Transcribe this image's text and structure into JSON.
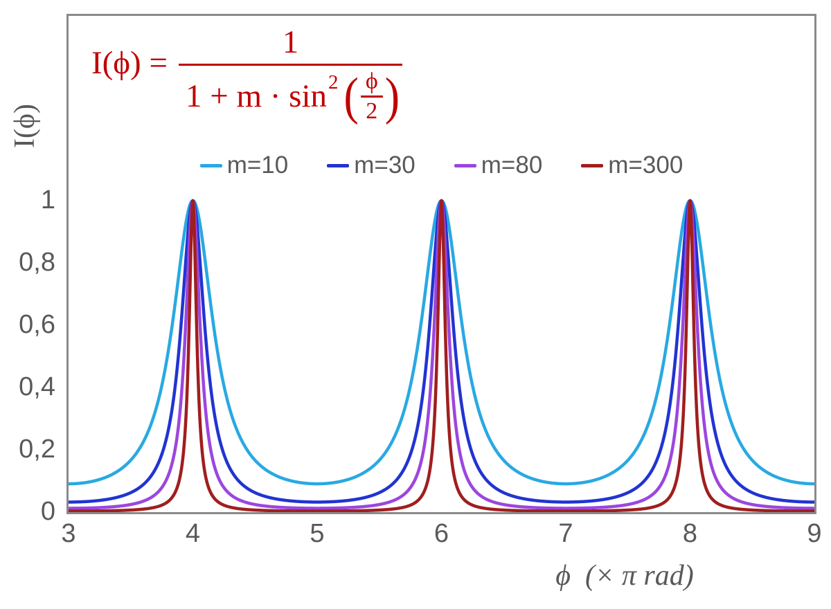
{
  "chart_data": {
    "type": "line",
    "title": "",
    "description": "Airy-type interference transmission curves I(phi) = 1 / (1 + m * sin^2(phi/2)), phi axis in units of pi rad; peaks of height 1 at phi = 4, 6 and 8 pi rad, sharper for larger m.",
    "function": "y = 1 / (1 + m * sin^2(x * PI / 2)), x in units of pi rad",
    "formula": {
      "lhs": "I(ϕ) =",
      "numerator": "1",
      "den_prefix": "1 + m · sin",
      "den_sup": "2",
      "open_paren": "(",
      "close_paren": ")",
      "inner_num": "ϕ",
      "inner_den": "2",
      "color": "#C00000"
    },
    "x": {
      "label": "ϕ  (× π rad)",
      "min": 3,
      "max": 9,
      "ticks": [
        {
          "value": 3,
          "label": "3"
        },
        {
          "value": 4,
          "label": "4"
        },
        {
          "value": 5,
          "label": "5"
        },
        {
          "value": 6,
          "label": "6"
        },
        {
          "value": 7,
          "label": "7"
        },
        {
          "value": 8,
          "label": "8"
        },
        {
          "value": 9,
          "label": "9"
        }
      ]
    },
    "y": {
      "label": "I(ϕ)",
      "min": 0,
      "max": 1.6,
      "ticks": [
        {
          "value": 0,
          "label": "0"
        },
        {
          "value": 0.2,
          "label": "0,2"
        },
        {
          "value": 0.4,
          "label": "0,4"
        },
        {
          "value": 0.6,
          "label": "0,6"
        },
        {
          "value": 0.8,
          "label": "0,8"
        },
        {
          "value": 1,
          "label": "1"
        }
      ]
    },
    "peaks_at_x": [
      4,
      6,
      8
    ],
    "minima_at_x": [
      3,
      5,
      7,
      9
    ],
    "series": [
      {
        "name": "m=10",
        "m": 10,
        "color": "#29A9E2",
        "peak_value": 1,
        "min_value": 0.0909
      },
      {
        "name": "m=30",
        "m": 30,
        "color": "#2134D1",
        "peak_value": 1,
        "min_value": 0.0323
      },
      {
        "name": "m=80",
        "m": 80,
        "color": "#9C46DE",
        "peak_value": 1,
        "min_value": 0.0123
      },
      {
        "name": "m=300",
        "m": 300,
        "color": "#A01E1E",
        "peak_value": 1,
        "min_value": 0.0033
      }
    ],
    "legend_position": "top-center",
    "grid": false,
    "colors": {
      "axis_frame": "#8A8A8A",
      "tick_text": "#595959",
      "formula": "#C00000"
    }
  }
}
